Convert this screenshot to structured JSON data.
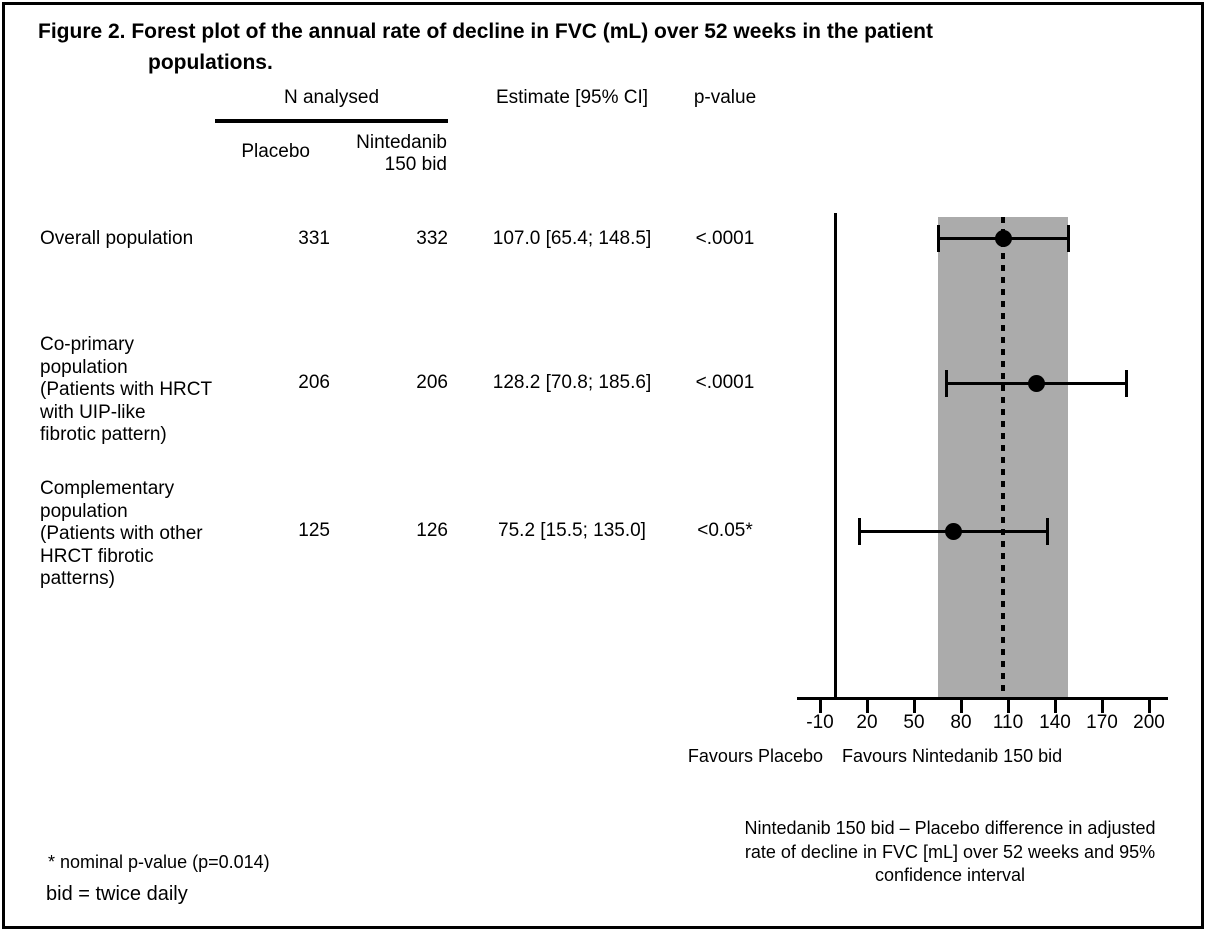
{
  "figure": {
    "title_line1": "Figure 2. Forest plot of the annual rate of decline in FVC (mL) over 52 weeks in the patient",
    "title_line2": "populations."
  },
  "table": {
    "header": {
      "n_analysed": "N analysed",
      "placebo": "Placebo",
      "nintedanib_line1": "Nintedanib",
      "nintedanib_line2": "150 bid",
      "estimate": "Estimate [95% CI]",
      "p_value": "p-value"
    },
    "rows": [
      {
        "label_lines": [
          "Overall population"
        ],
        "placebo_n": "331",
        "nintedanib_n": "332",
        "estimate": "107.0 [65.4; 148.5]",
        "p_value": "<.0001"
      },
      {
        "label_lines": [
          "Co-primary",
          "population",
          "(Patients with HRCT",
          "with UIP-like",
          "fibrotic pattern)"
        ],
        "placebo_n": "206",
        "nintedanib_n": "206",
        "estimate": "128.2 [70.8; 185.6]",
        "p_value": "<.0001"
      },
      {
        "label_lines": [
          "Complementary",
          "population",
          "(Patients with other",
          "HRCT fibrotic",
          "patterns)"
        ],
        "placebo_n": "125",
        "nintedanib_n": "126",
        "estimate": "75.2 [15.5; 135.0]",
        "p_value": "<0.05*"
      }
    ]
  },
  "chart_data": {
    "type": "scatter",
    "subtype": "forest-plot",
    "rows": [
      {
        "label": "Overall population",
        "n_placebo": 331,
        "n_nintedanib": 332,
        "estimate": 107.0,
        "ci_low": 65.4,
        "ci_high": 148.5,
        "p_value": "<.0001"
      },
      {
        "label": "Co-primary population (Patients with HRCT with UIP-like fibrotic pattern)",
        "n_placebo": 206,
        "n_nintedanib": 206,
        "estimate": 128.2,
        "ci_low": 70.8,
        "ci_high": 185.6,
        "p_value": "<.0001"
      },
      {
        "label": "Complementary population (Patients with other HRCT fibrotic patterns)",
        "n_placebo": 125,
        "n_nintedanib": 126,
        "estimate": 75.2,
        "ci_low": 15.5,
        "ci_high": 135.0,
        "p_value": "<0.05*"
      }
    ],
    "x_ticks": [
      -10,
      20,
      50,
      80,
      110,
      140,
      170,
      200
    ],
    "xlim": [
      -25,
      212
    ],
    "reference_lines": [
      {
        "value": 0,
        "style": "solid"
      },
      {
        "value": 107.0,
        "style": "dotted"
      }
    ],
    "shaded_band": {
      "from": 65.4,
      "to": 148.5,
      "color": "#ababab"
    },
    "xlabel_left": "Favours Placebo",
    "xlabel_right": "Favours Nintedanib 150 bid",
    "caption_lines": [
      "Nintedanib 150 bid – Placebo difference in adjusted",
      "rate of decline in FVC [mL] over 52 weeks and 95%",
      "confidence interval"
    ],
    "marker_color": "#000000",
    "grid": false
  },
  "footnotes": [
    "* nominal p-value (p=0.014)",
    "bid = twice daily"
  ]
}
